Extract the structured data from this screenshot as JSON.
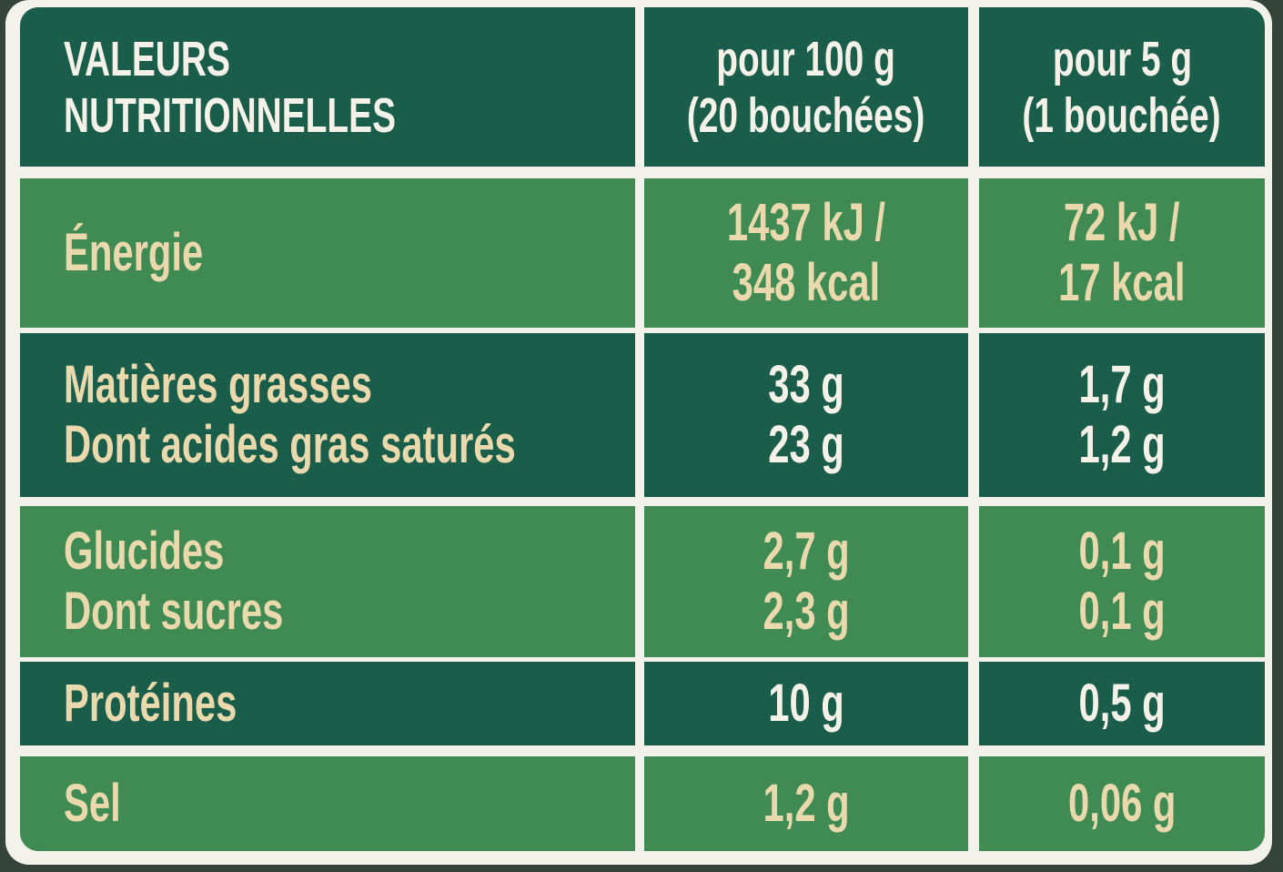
{
  "header": {
    "title_line1": "VALEURS",
    "title_line2": "NUTRITIONNELLES",
    "col2_line1": "pour 100 g",
    "col2_line2": "(20 bouchées)",
    "col3_line1": "pour 5 g",
    "col3_line2": "(1 bouchée)"
  },
  "rows": [
    {
      "label": "Énergie",
      "v100_line1": "1437 kJ /",
      "v100_line2": "348 kcal",
      "v5_line1": "72 kJ /",
      "v5_line2": "17 kcal"
    },
    {
      "label": "Matières grasses",
      "v100": "33 g",
      "v5": "1,7 g"
    },
    {
      "label": "Dont acides gras saturés",
      "v100": "23 g",
      "v5": "1,2 g"
    },
    {
      "label": "Glucides",
      "v100": "2,7 g",
      "v5": "0,1 g"
    },
    {
      "label": "Dont sucres",
      "v100": "2,3 g",
      "v5": "0,1 g"
    },
    {
      "label": "Protéines",
      "v100": "10 g",
      "v5": "0,5 g"
    },
    {
      "label": "Sel",
      "v100": "1,2 g",
      "v5": "0,06 g"
    }
  ],
  "colors": {
    "dark_row": "#1b5d4b",
    "light_row": "#3f8b53",
    "cream_text": "#e9d9ad",
    "white_text": "#f3f1e8"
  }
}
